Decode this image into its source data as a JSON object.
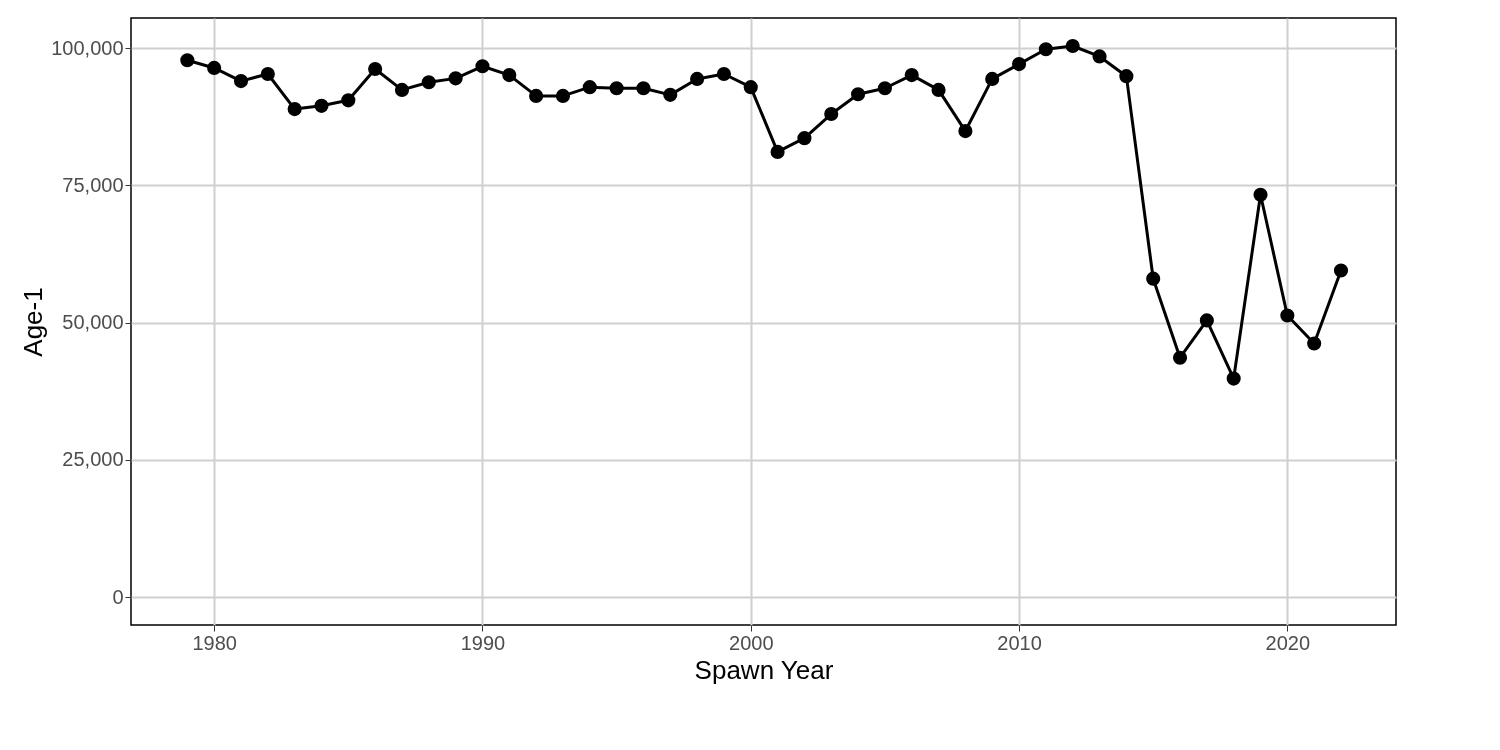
{
  "chart_data": {
    "type": "line",
    "xlabel": "Spawn Year",
    "ylabel": "Age-1",
    "x": [
      1979,
      1980,
      1981,
      1982,
      1983,
      1984,
      1985,
      1986,
      1987,
      1988,
      1989,
      1990,
      1991,
      1992,
      1993,
      1994,
      1995,
      1996,
      1997,
      1998,
      1999,
      2000,
      2001,
      2002,
      2003,
      2004,
      2005,
      2006,
      2007,
      2008,
      2009,
      2010,
      2011,
      2012,
      2013,
      2014,
      2015,
      2016,
      2017,
      2018,
      2019,
      2020,
      2021,
      2022
    ],
    "series": [
      {
        "color": "#000000",
        "values": [
          97800,
          96400,
          94000,
          95300,
          88900,
          89500,
          90500,
          96200,
          92400,
          93800,
          94500,
          96700,
          95100,
          91300,
          91300,
          92900,
          92700,
          92700,
          91500,
          94400,
          95300,
          92900,
          81100,
          83600,
          88000,
          91600,
          92700,
          95100,
          92400,
          84900,
          94400,
          97100,
          99800,
          100400,
          98500,
          94900,
          58000,
          43600,
          50400,
          39800,
          73300,
          51300,
          46200,
          59500
        ]
      }
    ],
    "xlim": [
      1976.9,
      2024.05
    ],
    "ylim": [
      -5100,
      105500
    ],
    "xticks": [
      1980,
      1990,
      2000,
      2010,
      2020
    ],
    "yticks": [
      {
        "value": 0,
        "label": "0"
      },
      {
        "value": 25000,
        "label": "25,000"
      },
      {
        "value": 50000,
        "label": "50,000"
      },
      {
        "value": 75000,
        "label": "75,000"
      },
      {
        "value": 100000,
        "label": "100,000"
      }
    ],
    "grid": true,
    "marker": "circle",
    "line_style": "solid"
  }
}
